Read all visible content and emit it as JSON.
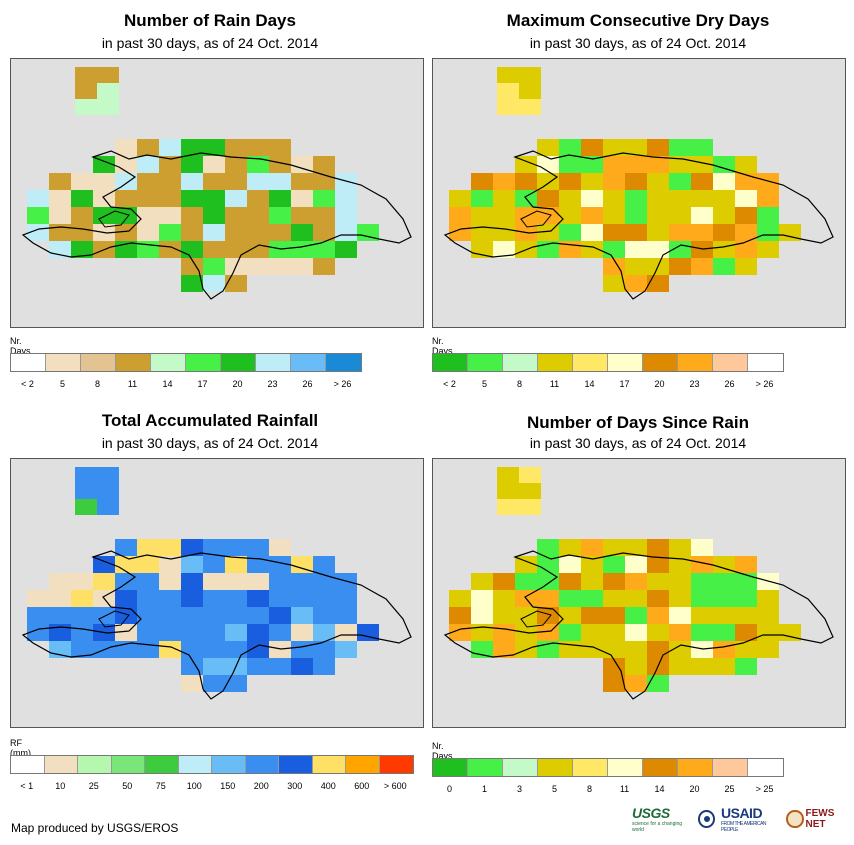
{
  "panels": [
    {
      "id": "rain-days",
      "title": "Number of Rain Days",
      "subtitle": "in past 30 days, as of 24 Oct. 2014",
      "legend_unit": "Nr. Days",
      "legend_colors": [
        "#ffffff",
        "#f2dfc0",
        "#e3c38f",
        "#cc9f30",
        "#c4fac8",
        "#46f046",
        "#1fbf1f",
        "#bfedf7",
        "#69bdf7",
        "#1a8ad6"
      ],
      "legend_labels": [
        "< 2",
        "5",
        "8",
        "11",
        "14",
        "17",
        "20",
        "23",
        "26",
        "> 26"
      ],
      "base_color": "#cc9f30"
    },
    {
      "id": "dry-days",
      "title": "Maximum Consecutive Dry Days",
      "subtitle": "in past 30 days, as of 24 Oct. 2014",
      "legend_unit": "Nr. Days",
      "legend_colors": [
        "#1fbf1f",
        "#46f046",
        "#c4fac8",
        "#ddcc00",
        "#ffe866",
        "#ffffcc",
        "#dd8a00",
        "#ffaa1a",
        "#ffc89a",
        "#ffffff"
      ],
      "legend_labels": [
        "< 2",
        "5",
        "8",
        "11",
        "14",
        "17",
        "20",
        "23",
        "26",
        "> 26"
      ],
      "base_color": "#ddcc00"
    },
    {
      "id": "total-rainfall",
      "title": "Total Accumulated Rainfall",
      "subtitle": "in past 30 days, as of 24 Oct. 2014",
      "legend_unit": "RF (mm)",
      "legend_colors": [
        "#ffffff",
        "#f2dfc0",
        "#b6f7b0",
        "#7ae67a",
        "#3dcc3d",
        "#bfedf7",
        "#69bdf7",
        "#3a8ef0",
        "#1a5ee0",
        "#ffe066",
        "#ffa500",
        "#ff3a00"
      ],
      "legend_labels": [
        "< 1",
        "10",
        "25",
        "50",
        "75",
        "100",
        "150",
        "200",
        "300",
        "400",
        "600",
        "> 600"
      ],
      "base_color": "#3a8ef0"
    },
    {
      "id": "days-since-rain",
      "title": "Number of Days Since Rain",
      "subtitle": "in past 30 days, as of 24 Oct. 2014",
      "legend_unit": "Nr. Days",
      "legend_colors": [
        "#1fbf1f",
        "#46f046",
        "#c4fac8",
        "#ddcc00",
        "#ffe866",
        "#ffffcc",
        "#dd8a00",
        "#ffaa1a",
        "#ffc89a",
        "#ffffff"
      ],
      "legend_labels": [
        "0",
        "1",
        "3",
        "5",
        "8",
        "11",
        "14",
        "20",
        "25",
        "> 25"
      ],
      "base_color": "#ddcc00"
    }
  ],
  "credit": "Map produced by USGS/EROS",
  "logos": {
    "usgs": "USGS",
    "usgs_tagline": "science for a changing world",
    "usaid": "USAID",
    "usaid_tagline": "FROM THE AMERICAN PEOPLE",
    "fews": "FEWS NET"
  }
}
